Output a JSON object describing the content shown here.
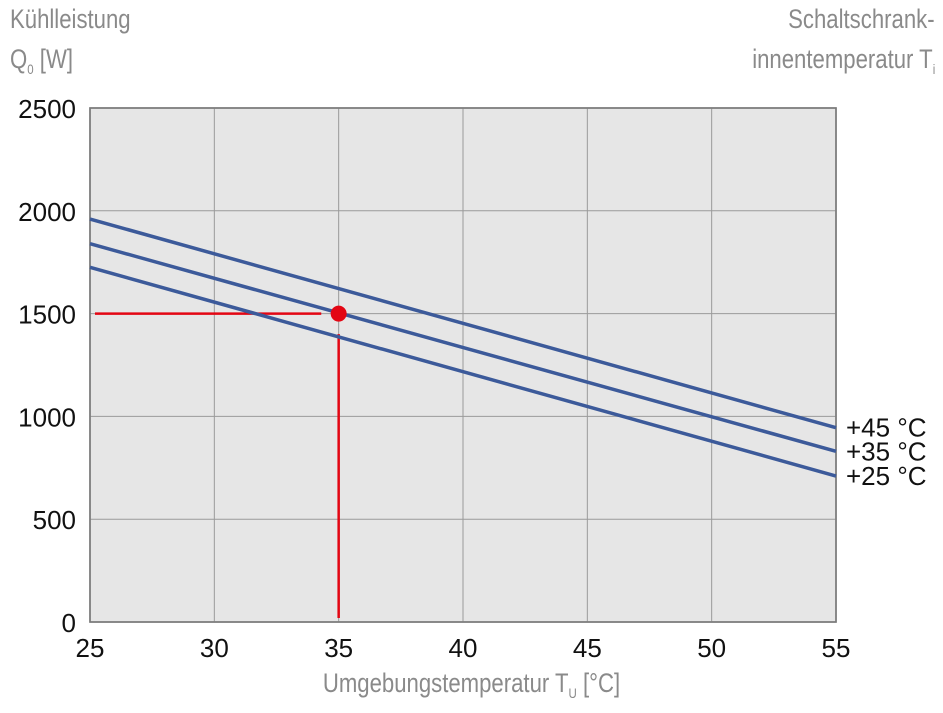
{
  "chart_data": {
    "type": "line",
    "title": "",
    "ylabel_line1": "Kühlleistung",
    "ylabel_symbol": "Q",
    "ylabel_sub": "0",
    "ylabel_unit": "[W]",
    "legend_title_line1": "Schaltschrank-",
    "legend_title_line2": "innentemperatur T",
    "legend_title_sub": "i",
    "xlabel": "Umgebungstemperatur T",
    "xlabel_sub": "U",
    "xlabel_unit": "[°C]",
    "xlim": [
      25,
      55
    ],
    "ylim": [
      0,
      2500
    ],
    "xticks": [
      25,
      30,
      35,
      40,
      45,
      50,
      55
    ],
    "yticks": [
      0,
      500,
      1000,
      1500,
      2000,
      2500
    ],
    "grid": true,
    "legend_placement": "right",
    "series": [
      {
        "name": "+45 °C",
        "x": [
          25,
          55
        ],
        "y": [
          1960,
          945
        ],
        "color": "#3c5a9a"
      },
      {
        "name": "+35 °C",
        "x": [
          25,
          55
        ],
        "y": [
          1840,
          830
        ],
        "color": "#3c5a9a"
      },
      {
        "name": "+25 °C",
        "x": [
          25,
          55
        ],
        "y": [
          1725,
          710
        ],
        "color": "#3c5a9a"
      }
    ],
    "annotation": {
      "point": [
        35,
        1500
      ],
      "color": "#e30613",
      "hline_x": [
        25.2,
        34.3
      ],
      "vline_y": [
        0,
        1400
      ]
    }
  }
}
